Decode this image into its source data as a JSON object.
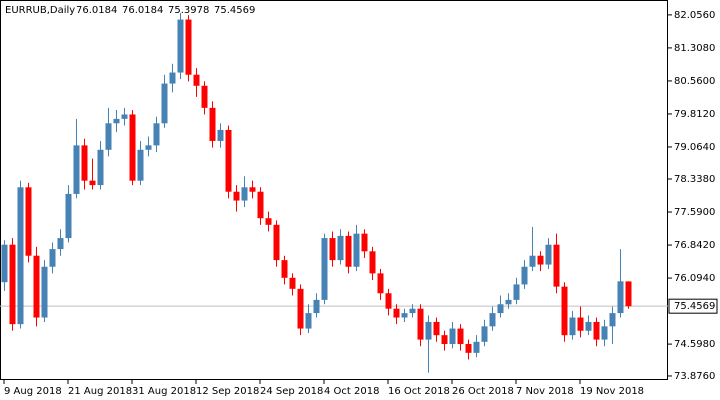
{
  "chart_data": {
    "type": "candlestick",
    "title": "EURRUB,Daily",
    "categories": [
      "9 Aug 2018",
      null,
      null,
      null,
      null,
      null,
      null,
      null,
      "21 Aug 2018",
      null,
      null,
      null,
      null,
      null,
      null,
      null,
      "31 Aug 2018",
      null,
      null,
      null,
      null,
      null,
      null,
      null,
      "12 Sep 2018",
      null,
      null,
      null,
      null,
      null,
      null,
      null,
      "24 Sep 2018",
      null,
      null,
      null,
      null,
      null,
      null,
      null,
      "4 Oct 2018",
      null,
      null,
      null,
      null,
      null,
      null,
      null,
      "16 Oct 2018",
      null,
      null,
      null,
      null,
      null,
      null,
      null,
      "26 Oct 2018",
      null,
      null,
      null,
      null,
      null,
      null,
      null,
      "7 Nov 2018",
      null,
      null,
      null,
      null,
      null,
      null,
      null,
      "19 Nov 2018",
      null,
      null,
      null,
      null,
      null,
      null
    ],
    "open": [
      76.0,
      76.85,
      75.05,
      78.15,
      76.6,
      75.2,
      76.35,
      76.75,
      77.0,
      78.0,
      79.1,
      78.3,
      78.2,
      79.0,
      79.6,
      79.7,
      79.8,
      78.3,
      79.0,
      79.1,
      79.6,
      80.5,
      80.75,
      81.95,
      80.7,
      80.45,
      79.95,
      79.2,
      79.45,
      78.05,
      77.85,
      78.15,
      78.05,
      77.45,
      77.3,
      76.5,
      76.1,
      75.85,
      74.95,
      75.3,
      75.6,
      77.0,
      76.5,
      77.05,
      76.35,
      77.1,
      76.7,
      76.2,
      75.75,
      75.4,
      75.2,
      75.3,
      75.4,
      74.7,
      75.1,
      74.8,
      74.6,
      74.95,
      74.6,
      74.4,
      74.65,
      75.0,
      75.3,
      75.5,
      75.6,
      75.95,
      76.35,
      76.6,
      76.4,
      76.85,
      75.9,
      74.8,
      75.2,
      74.9,
      75.1,
      74.7,
      75.0,
      75.3,
      76.0184
    ],
    "high": [
      76.95,
      77.0,
      78.3,
      78.25,
      76.8,
      76.5,
      76.9,
      77.2,
      78.2,
      79.7,
      79.25,
      78.8,
      79.2,
      79.95,
      79.9,
      79.95,
      79.9,
      79.2,
      79.3,
      79.75,
      80.7,
      80.95,
      82.1,
      82.05,
      80.85,
      80.55,
      80.1,
      79.6,
      79.55,
      78.2,
      78.4,
      78.3,
      78.15,
      77.6,
      77.4,
      76.6,
      76.2,
      75.95,
      75.5,
      75.75,
      77.1,
      77.15,
      77.2,
      77.15,
      77.3,
      77.2,
      76.8,
      76.3,
      75.85,
      75.5,
      75.4,
      75.5,
      75.5,
      75.25,
      75.2,
      74.9,
      75.1,
      75.05,
      74.7,
      74.8,
      75.15,
      75.45,
      75.7,
      75.75,
      76.1,
      76.5,
      77.25,
      76.7,
      77.0,
      77.1,
      76.0,
      75.35,
      75.45,
      75.25,
      75.2,
      75.15,
      75.45,
      76.75,
      76.0184
    ],
    "low": [
      75.8,
      74.9,
      74.95,
      76.45,
      75.0,
      75.1,
      76.2,
      76.6,
      76.9,
      77.9,
      78.1,
      78.1,
      78.1,
      78.85,
      79.4,
      79.55,
      78.2,
      78.2,
      78.85,
      78.95,
      79.5,
      80.3,
      80.6,
      80.55,
      80.2,
      79.8,
      79.05,
      79.05,
      77.9,
      77.6,
      77.7,
      77.9,
      77.3,
      77.15,
      76.35,
      75.95,
      75.7,
      74.8,
      74.85,
      75.2,
      75.5,
      76.35,
      76.4,
      76.2,
      76.25,
      76.55,
      76.05,
      75.6,
      75.25,
      75.05,
      75.1,
      75.2,
      74.55,
      73.95,
      74.65,
      74.45,
      74.5,
      74.45,
      74.25,
      74.3,
      74.55,
      74.9,
      75.2,
      75.4,
      75.5,
      75.85,
      76.25,
      76.25,
      76.3,
      75.75,
      74.65,
      74.7,
      74.75,
      74.8,
      74.55,
      74.55,
      74.6,
      75.2,
      75.3978
    ],
    "close": [
      76.85,
      75.05,
      78.15,
      76.6,
      75.2,
      76.35,
      76.75,
      77.0,
      78.0,
      79.1,
      78.3,
      78.2,
      79.0,
      79.6,
      79.7,
      79.8,
      78.3,
      79.0,
      79.1,
      79.6,
      80.5,
      80.75,
      81.95,
      80.7,
      80.45,
      79.95,
      79.2,
      79.45,
      78.05,
      77.85,
      78.15,
      78.05,
      77.45,
      77.3,
      76.5,
      76.1,
      75.85,
      74.95,
      75.3,
      75.6,
      77.0,
      76.5,
      77.05,
      76.35,
      77.1,
      76.7,
      76.2,
      75.75,
      75.4,
      75.2,
      75.3,
      75.4,
      74.7,
      75.1,
      74.8,
      74.6,
      74.95,
      74.6,
      74.4,
      74.65,
      75.0,
      75.3,
      75.5,
      75.6,
      75.95,
      76.35,
      76.6,
      76.4,
      76.85,
      75.9,
      74.8,
      75.2,
      74.9,
      75.1,
      74.7,
      75.0,
      75.3,
      76.02,
      75.4569
    ],
    "up_color": "#4682b4",
    "down_color": "#ff0000",
    "ylim": [
      73.83,
      82.28
    ],
    "yticks": [
      {
        "value": 82.056,
        "label": "82.0560"
      },
      {
        "value": 81.308,
        "label": "81.3080"
      },
      {
        "value": 80.56,
        "label": "80.5600"
      },
      {
        "value": 79.812,
        "label": "79.8120"
      },
      {
        "value": 79.064,
        "label": "79.0640"
      },
      {
        "value": 78.338,
        "label": "78.3380"
      },
      {
        "value": 77.59,
        "label": "77.5900"
      },
      {
        "value": 76.842,
        "label": "76.8420"
      },
      {
        "value": 76.094,
        "label": "76.0940"
      },
      {
        "value": 74.598,
        "label": "74.5980"
      },
      {
        "value": 73.876,
        "label": "73.8760"
      }
    ],
    "last_price_line": true
  }
}
